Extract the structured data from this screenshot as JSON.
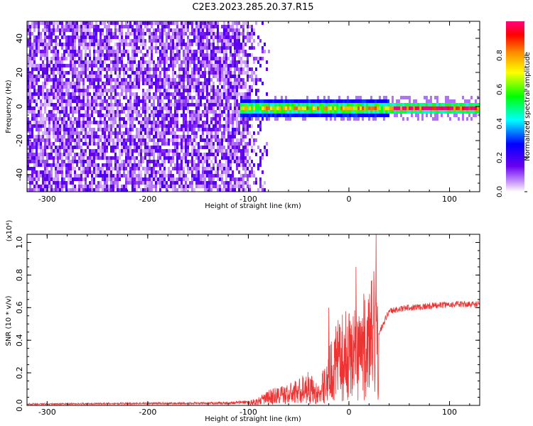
{
  "title": "C2E3.2023.285.20.37.R15",
  "chart_data": [
    {
      "type": "heatmap",
      "title": "",
      "xlabel": "Height of straight line (km)",
      "ylabel": "Frequency (Hz)",
      "xlim": [
        -320,
        130
      ],
      "ylim": [
        -50,
        50
      ],
      "xticks": [
        -300,
        -200,
        -100,
        0,
        100
      ],
      "yticks": [
        -40,
        -20,
        0,
        20,
        40
      ],
      "colorbar": {
        "label": "Normalized spectral amplitude",
        "range": [
          0,
          1
        ],
        "ticks": [
          0.0,
          0.2,
          0.4,
          0.6,
          0.8
        ],
        "colormap": [
          "#e6ccff",
          "#6a00f0",
          "#0000ff",
          "#00ffff",
          "#00ff00",
          "#ffff00",
          "#ff8800",
          "#ff0000",
          "#ff0080"
        ]
      },
      "regions": [
        {
          "description": "broadband noise",
          "x_range": [
            -320,
            -80
          ],
          "y_range": [
            -50,
            50
          ],
          "amplitude": 0.1
        },
        {
          "description": "narrow line",
          "x_range": [
            -110,
            130
          ],
          "y_center": 0,
          "y_halfwidth": 4,
          "amplitude_range": [
            0.3,
            0.9
          ]
        }
      ]
    },
    {
      "type": "line",
      "title": "",
      "xlabel": "Height of straight line (km)",
      "ylabel": "SNR (10 * v/v)",
      "scale_label": "(x10⁴)",
      "xlim": [
        -320,
        130
      ],
      "ylim": [
        0,
        1.05
      ],
      "xticks": [
        -300,
        -200,
        -100,
        0,
        100
      ],
      "yticks": [
        0.0,
        0.2,
        0.4,
        0.6,
        0.8,
        1.0
      ],
      "color": "#ee3333",
      "series": [
        {
          "x": [
            -320,
            -250,
            -200,
            -150,
            -120,
            -100,
            -90,
            -80,
            -70,
            -60,
            -50,
            -40,
            -30,
            -20,
            -10,
            0,
            10,
            20,
            25,
            30,
            40,
            60,
            80,
            100,
            130
          ],
          "y": [
            0.01,
            0.012,
            0.015,
            0.015,
            0.018,
            0.025,
            0.04,
            0.08,
            0.1,
            0.11,
            0.14,
            0.18,
            0.1,
            0.3,
            0.45,
            0.5,
            0.55,
            0.6,
            0.7,
            0.45,
            0.58,
            0.6,
            0.61,
            0.62,
            0.62
          ],
          "peaks": [
            {
              "x": 27,
              "y": 1.05
            },
            {
              "x": 7,
              "y": 0.85
            },
            {
              "x": -20,
              "y": 0.6
            }
          ]
        }
      ]
    }
  ]
}
